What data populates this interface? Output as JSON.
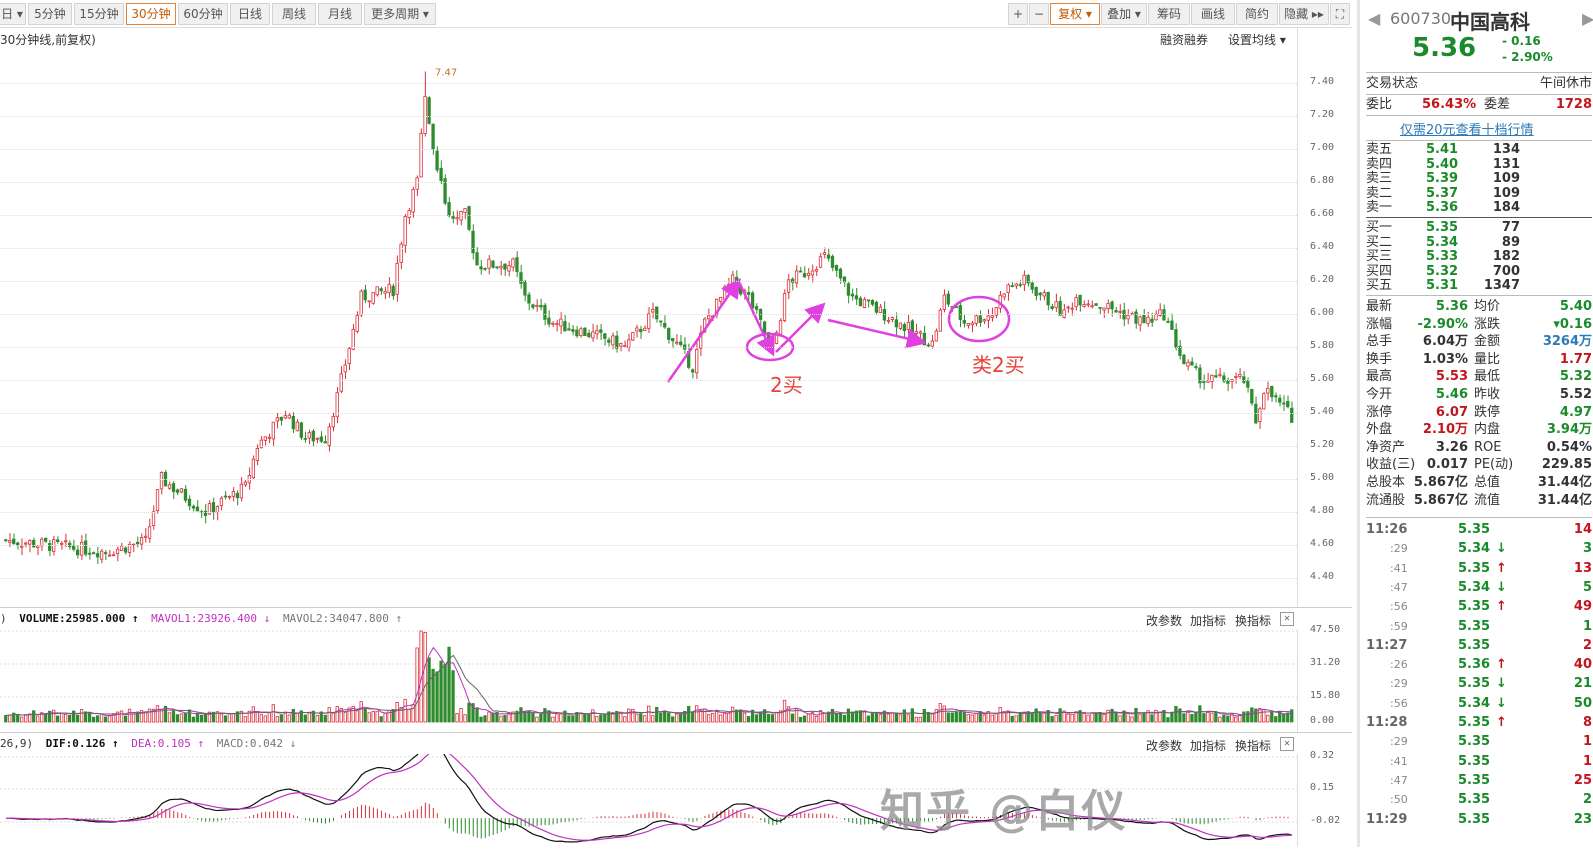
{
  "toolbar": {
    "period_tabs": [
      {
        "label": "日 ▾"
      },
      {
        "label": "5分钟"
      },
      {
        "label": "15分钟"
      },
      {
        "label": "30分钟",
        "active": true
      },
      {
        "label": "60分钟"
      },
      {
        "label": "日线"
      },
      {
        "label": "周线"
      },
      {
        "label": "月线"
      },
      {
        "label": "更多周期 ▾"
      }
    ],
    "right_buttons": [
      {
        "label": "+"
      },
      {
        "label": "−"
      },
      {
        "label": "复权 ▾",
        "active": true
      },
      {
        "label": "叠加 ▾"
      },
      {
        "label": "筹码"
      },
      {
        "label": "画线"
      },
      {
        "label": "简约"
      },
      {
        "label": "隐藏 ▸▸"
      },
      {
        "label": "⛶"
      }
    ]
  },
  "subheader": {
    "title": "30分钟线,前复权)",
    "margin_trading": "融资融券",
    "set_ma": "设置均线 ▾"
  },
  "chart_data": [
    {
      "type": "candlestick",
      "ylim": [
        4.3,
        7.5
      ],
      "y_ticks": [
        "7.40",
        "7.20",
        "7.00",
        "6.80",
        "6.60",
        "6.40",
        "6.20",
        "6.00",
        "5.80",
        "5.60",
        "5.40",
        "5.20",
        "5.00",
        "4.80",
        "4.60",
        "4.40"
      ],
      "peak_label": "7.47",
      "close_path": [
        [
          0,
          4.63
        ],
        [
          25,
          4.56
        ],
        [
          35,
          4.62
        ],
        [
          39,
          5.0
        ],
        [
          50,
          4.8
        ],
        [
          60,
          4.95
        ],
        [
          63,
          5.2
        ],
        [
          70,
          5.4
        ],
        [
          75,
          5.25
        ],
        [
          80,
          5.25
        ],
        [
          83,
          5.5
        ],
        [
          86,
          5.8
        ],
        [
          89,
          6.1
        ],
        [
          97,
          6.15
        ],
        [
          100,
          6.6
        ],
        [
          103,
          6.8
        ],
        [
          105,
          7.35
        ],
        [
          107,
          7.0
        ],
        [
          110,
          6.7
        ],
        [
          112,
          6.55
        ],
        [
          115,
          6.6
        ],
        [
          118,
          6.3
        ],
        [
          127,
          6.3
        ],
        [
          130,
          6.1
        ],
        [
          137,
          5.95
        ],
        [
          150,
          5.85
        ],
        [
          155,
          5.8
        ],
        [
          162,
          6.0
        ],
        [
          167,
          5.85
        ],
        [
          172,
          5.68
        ],
        [
          175,
          5.95
        ],
        [
          182,
          6.2
        ],
        [
          186,
          6.1
        ],
        [
          192,
          5.78
        ],
        [
          196,
          6.2
        ],
        [
          200,
          6.25
        ],
        [
          205,
          6.35
        ],
        [
          212,
          6.1
        ],
        [
          220,
          6.0
        ],
        [
          232,
          5.82
        ],
        [
          235,
          6.1
        ],
        [
          240,
          5.95
        ],
        [
          247,
          6.0
        ],
        [
          250,
          6.15
        ],
        [
          255,
          6.2
        ],
        [
          265,
          6.0
        ],
        [
          268,
          6.1
        ],
        [
          275,
          6.05
        ],
        [
          285,
          5.95
        ],
        [
          290,
          6.0
        ],
        [
          295,
          5.7
        ],
        [
          300,
          5.6
        ],
        [
          310,
          5.6
        ],
        [
          313,
          5.35
        ],
        [
          315,
          5.55
        ],
        [
          322,
          5.38
        ]
      ]
    },
    {
      "type": "bar",
      "name": "VOLUME",
      "y_ticks": [
        "47.50",
        "31.20",
        "15.80",
        "0.00"
      ],
      "ylim": [
        0,
        50
      ]
    },
    {
      "type": "line",
      "name": "MACD",
      "y_ticks": [
        "0.32",
        "0.15",
        "-0.02"
      ],
      "ylim": [
        -0.06,
        0.34
      ]
    }
  ],
  "volume": {
    "prefix": ")",
    "volume": "VOLUME:25985.000 ↑",
    "mavol1": "MAVOL1:23926.400 ↓",
    "mavol2": "MAVOL2:34047.800 ↑"
  },
  "macd": {
    "prefix": "26,9)",
    "dif": "DIF:0.126 ↑",
    "dea": "DEA:0.105 ↑",
    "macd": "MACD:0.042 ↓"
  },
  "indicator_buttons": {
    "params": "改参数",
    "add": "加指标",
    "switch": "换指标",
    "close": "✕"
  },
  "annotations": {
    "buy2": "2买",
    "similar_buy2": "类2买",
    "color": "#e040e0",
    "text_color": "#e8403a"
  },
  "watermark": "知乎 @白仪",
  "quote": {
    "code": "600730",
    "name": "中国高科",
    "price": "5.36",
    "change": "- 0.16",
    "change_pct": "- 2.90%",
    "status_label": "交易状态",
    "status": "午间休市",
    "wb_label": "委比",
    "wb": "56.43%",
    "wc_label": "委差",
    "wc": "1728",
    "upgrade_link": "仅需20元查看十档行情",
    "asks": [
      {
        "label": "卖五",
        "price": "5.41",
        "vol": "134"
      },
      {
        "label": "卖四",
        "price": "5.40",
        "vol": "131"
      },
      {
        "label": "卖三",
        "price": "5.39",
        "vol": "109"
      },
      {
        "label": "卖二",
        "price": "5.37",
        "vol": "109"
      },
      {
        "label": "卖一",
        "price": "5.36",
        "vol": "184"
      }
    ],
    "bids": [
      {
        "label": "买一",
        "price": "5.35",
        "vol": "77"
      },
      {
        "label": "买二",
        "price": "5.34",
        "vol": "89"
      },
      {
        "label": "买三",
        "price": "5.33",
        "vol": "182"
      },
      {
        "label": "买四",
        "price": "5.32",
        "vol": "700"
      },
      {
        "label": "买五",
        "price": "5.31",
        "vol": "1347"
      }
    ],
    "stats": [
      {
        "l1": "最新",
        "v1": "5.36",
        "c1": "g",
        "l2": "均价",
        "v2": "5.40",
        "c2": "g"
      },
      {
        "l1": "涨幅",
        "v1": "-2.90%",
        "c1": "g",
        "l2": "涨跌",
        "v2": "▾0.16",
        "c2": "g"
      },
      {
        "l1": "总手",
        "v1": "6.04万",
        "c1": "k",
        "l2": "金额",
        "v2": "3264万",
        "c2": "b"
      },
      {
        "l1": "换手",
        "v1": "1.03%",
        "c1": "k",
        "l2": "量比",
        "v2": "1.77",
        "c2": "r"
      },
      {
        "l1": "最高",
        "v1": "5.53",
        "c1": "r",
        "l2": "最低",
        "v2": "5.32",
        "c2": "g"
      },
      {
        "l1": "今开",
        "v1": "5.46",
        "c1": "g",
        "l2": "昨收",
        "v2": "5.52",
        "c2": "k"
      },
      {
        "l1": "涨停",
        "v1": "6.07",
        "c1": "r",
        "l2": "跌停",
        "v2": "4.97",
        "c2": "g"
      },
      {
        "l1": "外盘",
        "v1": "2.10万",
        "c1": "r",
        "l2": "内盘",
        "v2": "3.94万",
        "c2": "g"
      },
      {
        "l1": "净资产",
        "v1": "3.26",
        "c1": "k",
        "l2": "ROE",
        "v2": "0.54%",
        "c2": "k"
      },
      {
        "l1": "收益(三)",
        "v1": "0.017",
        "c1": "k",
        "l2": "PE(动)",
        "v2": "229.85",
        "c2": "k"
      },
      {
        "l1": "总股本",
        "v1": "5.867亿",
        "c1": "k",
        "l2": "总值",
        "v2": "31.44亿",
        "c2": "k"
      },
      {
        "l1": "流通股",
        "v1": "5.867亿",
        "c1": "k",
        "l2": "流值",
        "v2": "31.44亿",
        "c2": "k"
      }
    ],
    "ticks": [
      {
        "time": "11:26",
        "price": "5.35",
        "dir": "",
        "vol": "14",
        "vc": "r"
      },
      {
        "time": ":29",
        "price": "5.34",
        "dir": "↓",
        "vol": "3",
        "vc": "g"
      },
      {
        "time": ":41",
        "price": "5.35",
        "dir": "↑",
        "vol": "13",
        "vc": "r"
      },
      {
        "time": ":47",
        "price": "5.34",
        "dir": "↓",
        "vol": "5",
        "vc": "g"
      },
      {
        "time": ":56",
        "price": "5.35",
        "dir": "↑",
        "vol": "49",
        "vc": "r"
      },
      {
        "time": ":59",
        "price": "5.35",
        "dir": "",
        "vol": "1",
        "vc": "g"
      },
      {
        "time": "11:27",
        "price": "5.35",
        "dir": "",
        "vol": "2",
        "vc": "r"
      },
      {
        "time": ":26",
        "price": "5.36",
        "dir": "↑",
        "vol": "40",
        "vc": "r"
      },
      {
        "time": ":29",
        "price": "5.35",
        "dir": "↓",
        "vol": "21",
        "vc": "g"
      },
      {
        "time": ":56",
        "price": "5.34",
        "dir": "↓",
        "vol": "50",
        "vc": "g"
      },
      {
        "time": "11:28",
        "price": "5.35",
        "dir": "↑",
        "vol": "8",
        "vc": "r"
      },
      {
        "time": ":29",
        "price": "5.35",
        "dir": "",
        "vol": "1",
        "vc": "r"
      },
      {
        "time": ":41",
        "price": "5.35",
        "dir": "",
        "vol": "1",
        "vc": "r"
      },
      {
        "time": ":47",
        "price": "5.35",
        "dir": "",
        "vol": "25",
        "vc": "r"
      },
      {
        "time": ":50",
        "price": "5.35",
        "dir": "",
        "vol": "2",
        "vc": "g"
      },
      {
        "time": "11:29",
        "price": "5.35",
        "dir": "",
        "vol": "23",
        "vc": "g"
      }
    ]
  }
}
